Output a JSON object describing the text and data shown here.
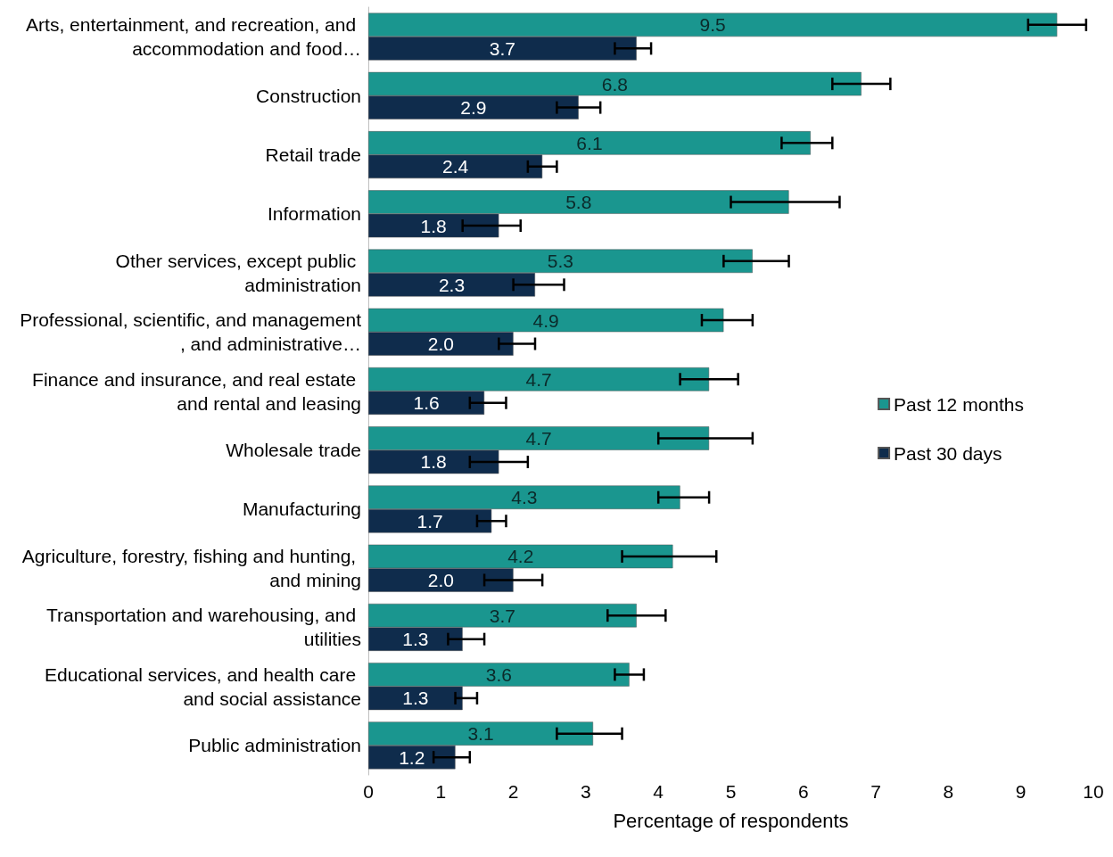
{
  "chart_data": {
    "type": "bar",
    "orientation": "horizontal",
    "xlabel": "Percentage of respondents",
    "categories": [
      "Arts, entertainment, and recreation, and accommodation and food…",
      "Construction",
      "Retail trade",
      "Information",
      "Other services, except public administration",
      "Professional, scientific, and management, and administrative…",
      "Finance and insurance, and real estate and rental and leasing",
      "Wholesale trade",
      "Manufacturing",
      "Agriculture, forestry, fishing and hunting, and mining",
      "Transportation and warehousing, and utilities",
      "Educational services, and health care and social assistance",
      "Public administration"
    ],
    "series": [
      {
        "name": "Past 12 months",
        "color": "#1a968f",
        "values": [
          9.5,
          6.8,
          6.1,
          5.8,
          5.3,
          4.9,
          4.7,
          4.7,
          4.3,
          4.2,
          3.7,
          3.6,
          3.1
        ],
        "value_labels": [
          "9.5",
          "6.8",
          "6.1",
          "5.8",
          "5.3",
          "4.9",
          "4.7",
          "4.7",
          "4.3",
          "4.2",
          "3.7",
          "3.6",
          "3.1"
        ],
        "errors": [
          [
            9.1,
            9.9
          ],
          [
            6.4,
            7.2
          ],
          [
            5.7,
            6.4
          ],
          [
            5.0,
            6.5
          ],
          [
            4.9,
            5.8
          ],
          [
            4.6,
            5.3
          ],
          [
            4.3,
            5.1
          ],
          [
            4.0,
            5.3
          ],
          [
            4.0,
            4.7
          ],
          [
            3.5,
            4.8
          ],
          [
            3.3,
            4.1
          ],
          [
            3.4,
            3.8
          ],
          [
            2.6,
            3.5
          ]
        ]
      },
      {
        "name": "Past 30 days",
        "color": "#0f2c4c",
        "values": [
          3.7,
          2.9,
          2.4,
          1.8,
          2.3,
          2.0,
          1.6,
          1.8,
          1.7,
          2.0,
          1.3,
          1.3,
          1.2
        ],
        "value_labels": [
          "3.7",
          "2.9",
          "2.4",
          "1.8",
          "2.3",
          "2.0",
          "1.6",
          "1.8",
          "1.7",
          "2.0",
          "1.3",
          "1.3",
          "1.2"
        ],
        "errors": [
          [
            3.4,
            3.9
          ],
          [
            2.6,
            3.2
          ],
          [
            2.2,
            2.6
          ],
          [
            1.3,
            2.1
          ],
          [
            2.0,
            2.7
          ],
          [
            1.8,
            2.3
          ],
          [
            1.4,
            1.9
          ],
          [
            1.4,
            2.2
          ],
          [
            1.5,
            1.9
          ],
          [
            1.6,
            2.4
          ],
          [
            1.1,
            1.6
          ],
          [
            1.2,
            1.5
          ],
          [
            0.9,
            1.4
          ]
        ]
      }
    ],
    "xlim": [
      0,
      10
    ],
    "xticks": [
      0,
      1,
      2,
      3,
      4,
      5,
      6,
      7,
      8,
      9,
      10
    ],
    "grid": false,
    "legend": "right"
  }
}
